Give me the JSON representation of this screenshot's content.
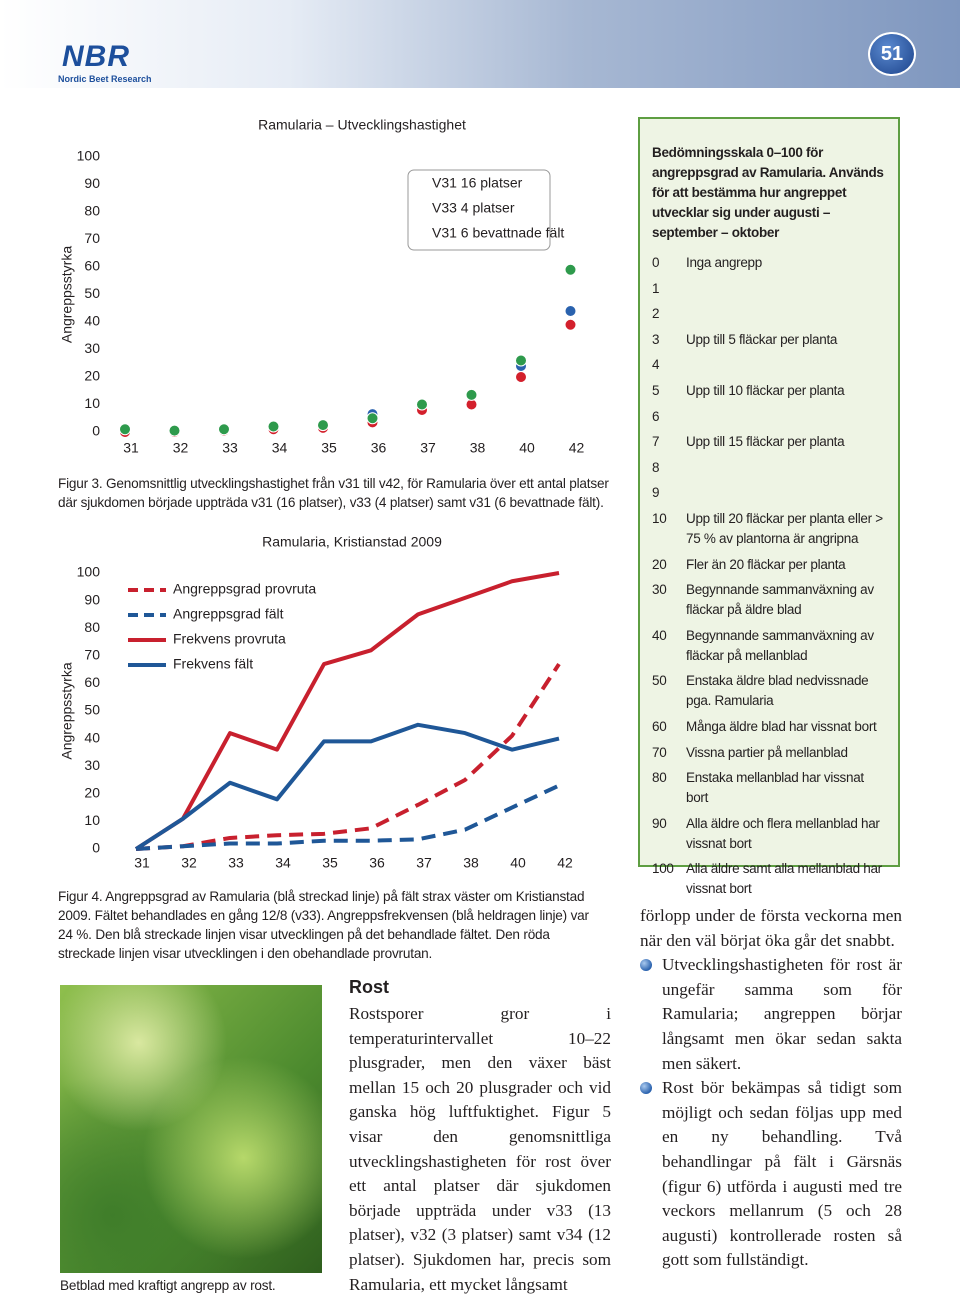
{
  "header": {
    "logo": "NBR",
    "logo_subtitle": "Nordic Beet Research",
    "page_number": "51"
  },
  "chart_data": [
    {
      "type": "scatter",
      "title": "Ramularia – Utvecklingshastighet",
      "y_label": "Angreppsstyrka",
      "categories": [
        "31",
        "32",
        "33",
        "34",
        "35",
        "36",
        "37",
        "38",
        "40",
        "42"
      ],
      "ylim": [
        0,
        100
      ],
      "yticks": [
        0,
        10,
        20,
        30,
        40,
        50,
        60,
        70,
        80,
        90,
        100
      ],
      "grid": false,
      "series": [
        {
          "name": "V31 16 platser",
          "color": "#2a62ae",
          "values": [
            0.5,
            0.5,
            1,
            2,
            2,
            6.5,
            9.5,
            13,
            24,
            44
          ]
        },
        {
          "name": "V33 4 platser",
          "color": "#d3202c",
          "values": [
            0,
            0,
            0.5,
            1,
            1.5,
            3.5,
            8,
            10,
            20,
            39
          ]
        },
        {
          "name": "V31 6 bevattnade fält",
          "color": "#2e9a4c",
          "values": [
            1,
            0.5,
            1,
            2,
            2.5,
            5,
            10,
            13.5,
            26,
            59
          ]
        }
      ]
    },
    {
      "type": "line",
      "title": "Ramularia, Kristianstad 2009",
      "y_label": "Angreppsstyrka",
      "categories": [
        "31",
        "32",
        "33",
        "34",
        "35",
        "36",
        "37",
        "38",
        "40",
        "42"
      ],
      "ylim": [
        0,
        100
      ],
      "yticks": [
        0,
        10,
        20,
        30,
        40,
        50,
        60,
        70,
        80,
        90,
        100
      ],
      "grid": false,
      "series": [
        {
          "name": "Angreppsgrad provruta",
          "color": "#c8202e",
          "dashed": true,
          "values": [
            0,
            1,
            4,
            5,
            5.5,
            7.5,
            16,
            25,
            41,
            67
          ]
        },
        {
          "name": "Angreppsgrad fält",
          "color": "#1f5797",
          "dashed": true,
          "values": [
            0,
            1,
            2,
            2,
            3,
            3,
            3.5,
            7,
            15,
            23
          ]
        },
        {
          "name": "Frekvens provruta",
          "color": "#c8202e",
          "dashed": false,
          "values": [
            0,
            11,
            42,
            36,
            67,
            72,
            85,
            91,
            97,
            100
          ]
        },
        {
          "name": "Frekvens fält",
          "color": "#1f5797",
          "dashed": false,
          "values": [
            0,
            11,
            24,
            18,
            39,
            39,
            45,
            42,
            36,
            40
          ]
        }
      ]
    }
  ],
  "figure3_caption": "Figur 3. Genomsnittlig utvecklingshastighet från v31 till v42, för Ramularia över ett antal platser där sjukdomen började uppträda v31 (16 platser), v33 (4 platser) samt v31 (6 bevattnade fält).",
  "figure4_caption": "Figur 4. Angreppsgrad av Ramularia (blå streckad linje) på fält strax väster om Kristianstad 2009. Fältet behandlades en gång 12/8 (v33). Angreppsfrekvensen (blå heldragen linje) var 24 %. Den blå streckade linjen visar utvecklingen på det behandlade fältet. Den röda streckade linjen visar utvecklingen i den obehandlade provrutan.",
  "table": {
    "title": "Bedömningsskala 0–100 för angreppsgrad av Ramularia. Används för att bestämma hur angreppet utvecklar sig under augusti – september – oktober",
    "rows": [
      {
        "score": 0,
        "text": "Inga angrepp"
      },
      {
        "score": 1
      },
      {
        "score": 2
      },
      {
        "score": 3,
        "text": "Upp till 5 fläckar per planta"
      },
      {
        "score": 4
      },
      {
        "score": 5,
        "text": "Upp till 10 fläckar per planta"
      },
      {
        "score": 6
      },
      {
        "score": 7,
        "text": "Upp till 15 fläckar per planta"
      },
      {
        "score": 8
      },
      {
        "score": 9
      },
      {
        "score": 10,
        "text": "Upp till 20 fläckar per planta eller > 75 % av plantorna är angripna"
      },
      {
        "score": 20,
        "text": "Fler än 20 fläckar per planta"
      },
      {
        "score": 30,
        "text": "Begynnande sammanväxning av fläckar på äldre blad"
      },
      {
        "score": 40,
        "text": "Begynnande sammanväxning av fläckar på mellanblad"
      },
      {
        "score": 50,
        "text": "Enstaka äldre blad nedvissnade pga. Ramularia"
      },
      {
        "score": 60,
        "text": "Många äldre blad har vissnat bort"
      },
      {
        "score": 70,
        "text": "Vissna partier på mellanblad"
      },
      {
        "score": 80,
        "text": "Enstaka mellanblad har vissnat bort"
      },
      {
        "score": 90,
        "text": "Alla äldre och flera mellanblad har vissnat bort"
      },
      {
        "score": 100,
        "text": "Alla äldre samt alla mellanblad har vissnat bort"
      }
    ]
  },
  "photo_caption": "Betblad med kraftigt angrepp av rost.",
  "rost": {
    "heading": "Rost",
    "body": "Rostsporer gror i temperaturintervallet 10–22 plusgrader, men den växer bäst mellan 15 och 20 plusgrader och vid ganska hög luftfuktighet. Figur 5 visar den genomsnittliga utvecklingshastigheten för rost över ett antal platser där sjukdomen började uppträda under v33 (13 platser), v32 (3 platser) samt v34 (12 platser). Sjukdomen har, precis som Ramularia, ett mycket långsamt"
  },
  "right_column": {
    "intro": "förlopp under de första veckorna men när den väl börjat öka går det snabbt.",
    "bullets": [
      "Utvecklingshastigheten för rost är ungefär samma som för Ramularia; angreppen börjar långsamt men ökar sedan sakta men säkert.",
      "Rost bör bekämpas så tidigt som möjligt och sedan följas upp med en ny behandling. Två behandlingar på fält i Gärsnäs (figur 6) utförda i augusti med tre veckors mellanrum (5 och 28 augusti) kontrollerade rosten så gott som fullständigt."
    ]
  }
}
